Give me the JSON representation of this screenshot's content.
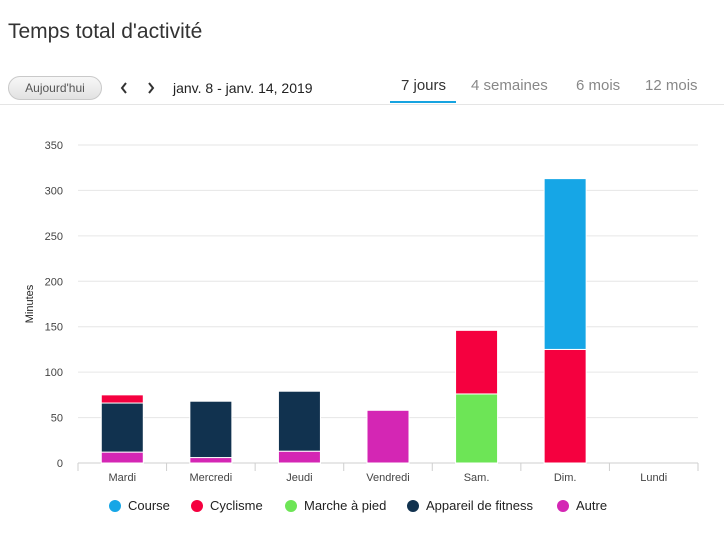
{
  "header": {
    "title": "Temps total d'activité",
    "today_label": "Aujourd'hui",
    "prev_icon": "chevron-left-icon",
    "next_icon": "chevron-right-icon",
    "date_range": "janv. 8 - janv. 14, 2019"
  },
  "tabs": [
    {
      "label": "7 jours",
      "active": true
    },
    {
      "label": "4 semaines",
      "active": false
    },
    {
      "label": "6 mois",
      "active": false
    },
    {
      "label": "12 mois",
      "active": false
    }
  ],
  "accent_color": "#16a3e0",
  "chart_data": {
    "type": "bar",
    "stacked": true,
    "ylabel": "Minutes",
    "xlabel": "",
    "ylim": [
      0,
      350
    ],
    "yticks": [
      0,
      50,
      100,
      150,
      200,
      250,
      300,
      350
    ],
    "grid": true,
    "categories": [
      "Mardi",
      "Mercredi",
      "Jeudi",
      "Vendredi",
      "Sam.",
      "Dim.",
      "Lundi"
    ],
    "series": [
      {
        "name": "Autre",
        "color": "#d426b4",
        "values": [
          12,
          6,
          13,
          58,
          0,
          0,
          0
        ]
      },
      {
        "name": "Appareil de fitness",
        "color": "#11324f",
        "values": [
          54,
          62,
          66,
          0,
          0,
          0,
          0
        ]
      },
      {
        "name": "Marche à pied",
        "color": "#6de556",
        "values": [
          0,
          0,
          0,
          0,
          76,
          0,
          0
        ]
      },
      {
        "name": "Cyclisme",
        "color": "#f5003f",
        "values": [
          9,
          0,
          0,
          0,
          70,
          125,
          0
        ]
      },
      {
        "name": "Course",
        "color": "#16a6e6",
        "values": [
          0,
          0,
          0,
          0,
          0,
          188,
          0
        ]
      }
    ],
    "legend": {
      "placement": "bottom",
      "order": [
        "Course",
        "Cyclisme",
        "Marche à pied",
        "Appareil de fitness",
        "Autre"
      ]
    }
  }
}
